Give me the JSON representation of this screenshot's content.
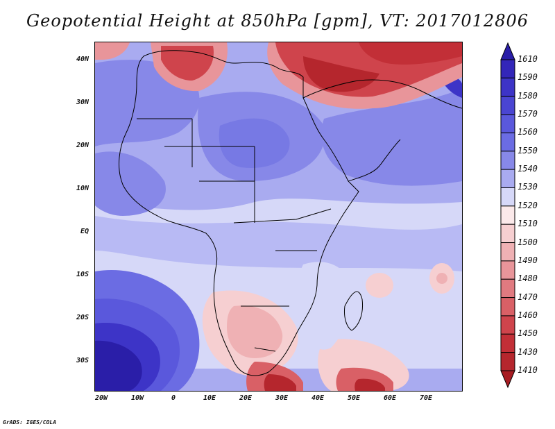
{
  "title": "Geopotential Height at 850hPa [gpm], VT: 2017012806",
  "y_ticks": [
    "40N",
    "30N",
    "20N",
    "10N",
    "EQ",
    "10S",
    "20S",
    "30S"
  ],
  "x_ticks": [
    "20W",
    "10W",
    "0",
    "10E",
    "20E",
    "30E",
    "40E",
    "50E",
    "60E",
    "70E"
  ],
  "colorbar": {
    "levels": [
      "1610",
      "1590",
      "1580",
      "1570",
      "1560",
      "1550",
      "1540",
      "1530",
      "1520",
      "1510",
      "1500",
      "1490",
      "1480",
      "1470",
      "1460",
      "1450",
      "1430",
      "1410"
    ],
    "colors": [
      "#2a1ea8",
      "#3326b9",
      "#3d34c7",
      "#4a45d2",
      "#5a58dc",
      "#6b6ce3",
      "#8788e8",
      "#a9abf0",
      "#d6d8f8",
      "#fbe9ea",
      "#f6cfd1",
      "#efb1b4",
      "#e8959a",
      "#e07a80",
      "#d96066",
      "#cf444c",
      "#c22f37",
      "#b5262d",
      "#a81c22"
    ]
  },
  "footer": "GrADS: IGES/COLA"
}
